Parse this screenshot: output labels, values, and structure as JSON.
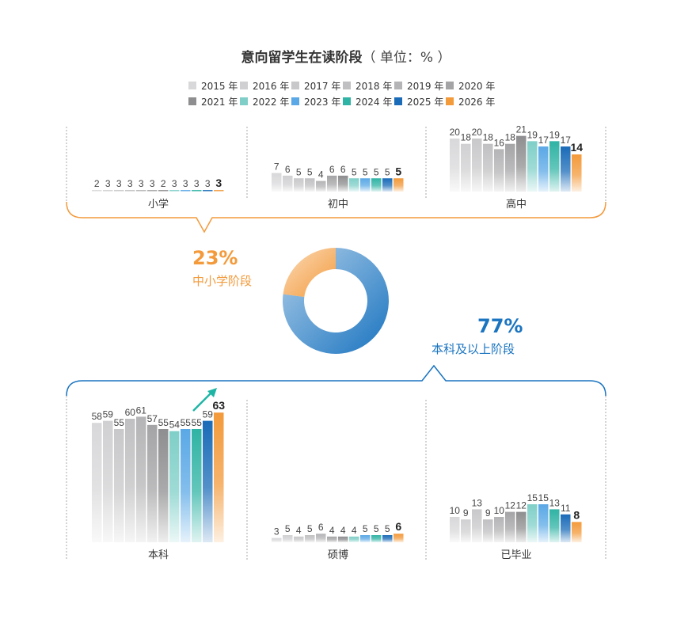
{
  "title": "意向留学生在读阶段",
  "unit": "（ 单位：% ）",
  "colors": {
    "orange": "#f39a3b",
    "blue": "#1a74c0",
    "gray": "#9a9a9c"
  },
  "donut": {
    "segments": [
      {
        "label": "中小学阶段",
        "value": 23,
        "display": "23%",
        "color": "#f39a3b"
      },
      {
        "label": "本科及以上阶段",
        "value": 77,
        "display": "77%",
        "color": "#1a74c0"
      }
    ]
  },
  "chart_data": {
    "type": "bar",
    "categories": [
      "2015 年",
      "2016 年",
      "2017 年",
      "2018 年",
      "2019 年",
      "2020 年",
      "2021 年",
      "2022 年",
      "2023 年",
      "2024 年",
      "2025 年",
      "2026 年"
    ],
    "series_colors": [
      "#d8d8da",
      "#d0d0d2",
      "#c8c8ca",
      "#c0c0c2",
      "#b4b4b6",
      "#a4a4a6",
      "#8e8e90",
      "#7fcfc8",
      "#5aa8e6",
      "#2fb3a4",
      "#1a6bb8",
      "#f39a3b"
    ],
    "panels": [
      {
        "label": "小学",
        "values": [
          2,
          3,
          3,
          3,
          3,
          3,
          2,
          3,
          3,
          3,
          3,
          3
        ]
      },
      {
        "label": "初中",
        "values": [
          7,
          6,
          5,
          5,
          4,
          6,
          6,
          5,
          5,
          5,
          5,
          5
        ]
      },
      {
        "label": "高中",
        "values": [
          20,
          18,
          20,
          18,
          16,
          18,
          21,
          19,
          17,
          19,
          17,
          14
        ]
      },
      {
        "label": "本科",
        "values": [
          58,
          59,
          55,
          60,
          61,
          57,
          55,
          54,
          55,
          55,
          59,
          63
        ]
      },
      {
        "label": "硕博",
        "values": [
          3,
          5,
          4,
          5,
          6,
          4,
          4,
          4,
          5,
          5,
          5,
          6
        ]
      },
      {
        "label": "已毕业",
        "values": [
          10,
          9,
          13,
          9,
          10,
          12,
          12,
          15,
          15,
          13,
          11,
          8
        ]
      }
    ]
  }
}
